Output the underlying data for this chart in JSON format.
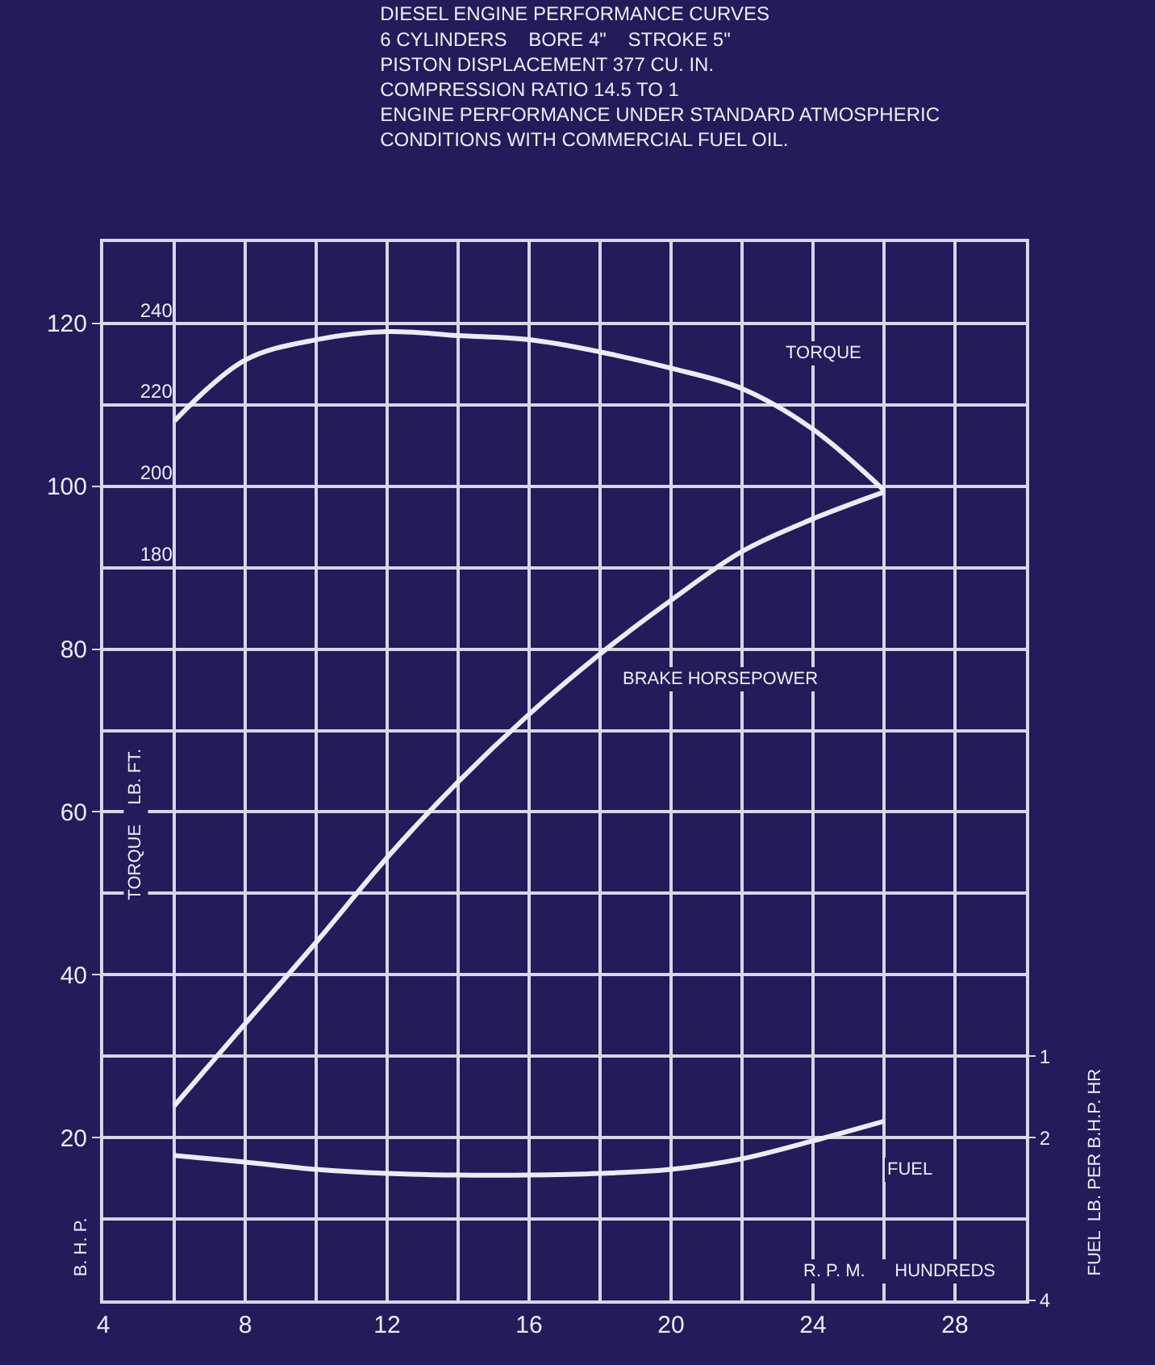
{
  "chart_data": {
    "type": "line",
    "title": "DIESEL ENGINE PERFORMANCE CURVES\n6 CYLINDERS    BORE 4\"    STROKE 5\"\nPISTON DISPLACEMENT 377 CU. IN.\nCOMPRESSION RATIO 14.5 TO 1\nENGINE PERFORMANCE UNDER STANDARD ATMOSPHERIC\nCONDITIONS WITH COMMERCIAL FUEL OIL.",
    "xlabel": "R. P. M.      HUNDREDS",
    "ylabel": "B. H. P.",
    "y2label": "TORQUE    LB. FT.",
    "y3label": "FUEL  LB. PER B.H.P. HR",
    "x": [
      6,
      8,
      10,
      12,
      14,
      16,
      18,
      20,
      22,
      24,
      26
    ],
    "series": [
      {
        "name": "TORQUE",
        "color": "#ecebf4",
        "axis": "y2",
        "values": [
          216,
          231,
          236,
          238,
          237,
          236,
          233,
          229,
          224,
          214,
          199
        ]
      },
      {
        "name": "BRAKE HORSEPOWER",
        "color": "#ecebf4",
        "values": [
          23.9,
          34,
          44,
          54.4,
          63.7,
          72,
          79.4,
          86,
          92,
          96,
          99.3
        ]
      },
      {
        "name": "FUEL",
        "color": "#ecebf4",
        "axis": "y3",
        "values": [
          2.22,
          2.3,
          2.39,
          2.44,
          2.46,
          2.46,
          2.44,
          2.39,
          2.26,
          2.04,
          1.8
        ]
      }
    ],
    "xlim": [
      4,
      30
    ],
    "xticks": [
      4,
      8,
      12,
      16,
      20,
      24,
      28
    ],
    "ylim": [
      0,
      130
    ],
    "yticks": [
      20,
      40,
      60,
      80,
      100,
      120
    ],
    "y2lim": [
      0,
      260
    ],
    "y2ticks": [
      180,
      200,
      220,
      240
    ],
    "y3lim": [
      4,
      -9
    ],
    "y3ticks": [
      1,
      2,
      4
    ],
    "grid": true,
    "legend": false,
    "marker": "none",
    "line_style": "solid"
  }
}
